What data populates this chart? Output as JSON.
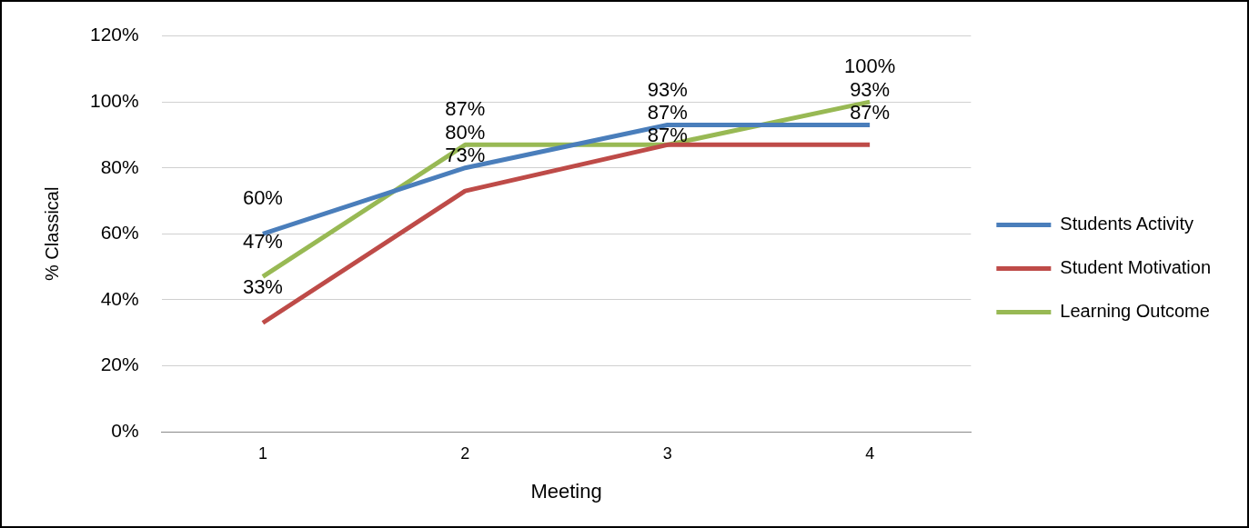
{
  "chart_data": {
    "type": "line",
    "xlabel": "Meeting",
    "ylabel": "% Classical",
    "categories": [
      "1",
      "2",
      "3",
      "4"
    ],
    "series": [
      {
        "name": "Students Activity",
        "color": "#4a7ebb",
        "values": [
          60,
          80,
          93,
          93
        ],
        "value_labels": [
          "60%",
          "80%",
          "93%",
          "93%"
        ]
      },
      {
        "name": "Student Motivation",
        "color": "#be4b48",
        "values": [
          33,
          73,
          87,
          87
        ],
        "value_labels": [
          "33%",
          "73%",
          "87%",
          "87%"
        ]
      },
      {
        "name": "Learning Outcome",
        "color": "#98b954",
        "values": [
          47,
          87,
          87,
          100
        ],
        "value_labels": [
          "47%",
          "87%",
          "87%",
          "100%"
        ]
      }
    ],
    "ylim": [
      0,
      120
    ],
    "yticks": [
      {
        "value": 0,
        "label": "0%"
      },
      {
        "value": 20,
        "label": "20%"
      },
      {
        "value": 40,
        "label": "40%"
      },
      {
        "value": 60,
        "label": "60%"
      },
      {
        "value": 80,
        "label": "80%"
      },
      {
        "value": 100,
        "label": "100%"
      },
      {
        "value": 120,
        "label": "120%"
      }
    ],
    "grid": "y",
    "legend": "right",
    "marker": "none",
    "line_style": "solid"
  }
}
